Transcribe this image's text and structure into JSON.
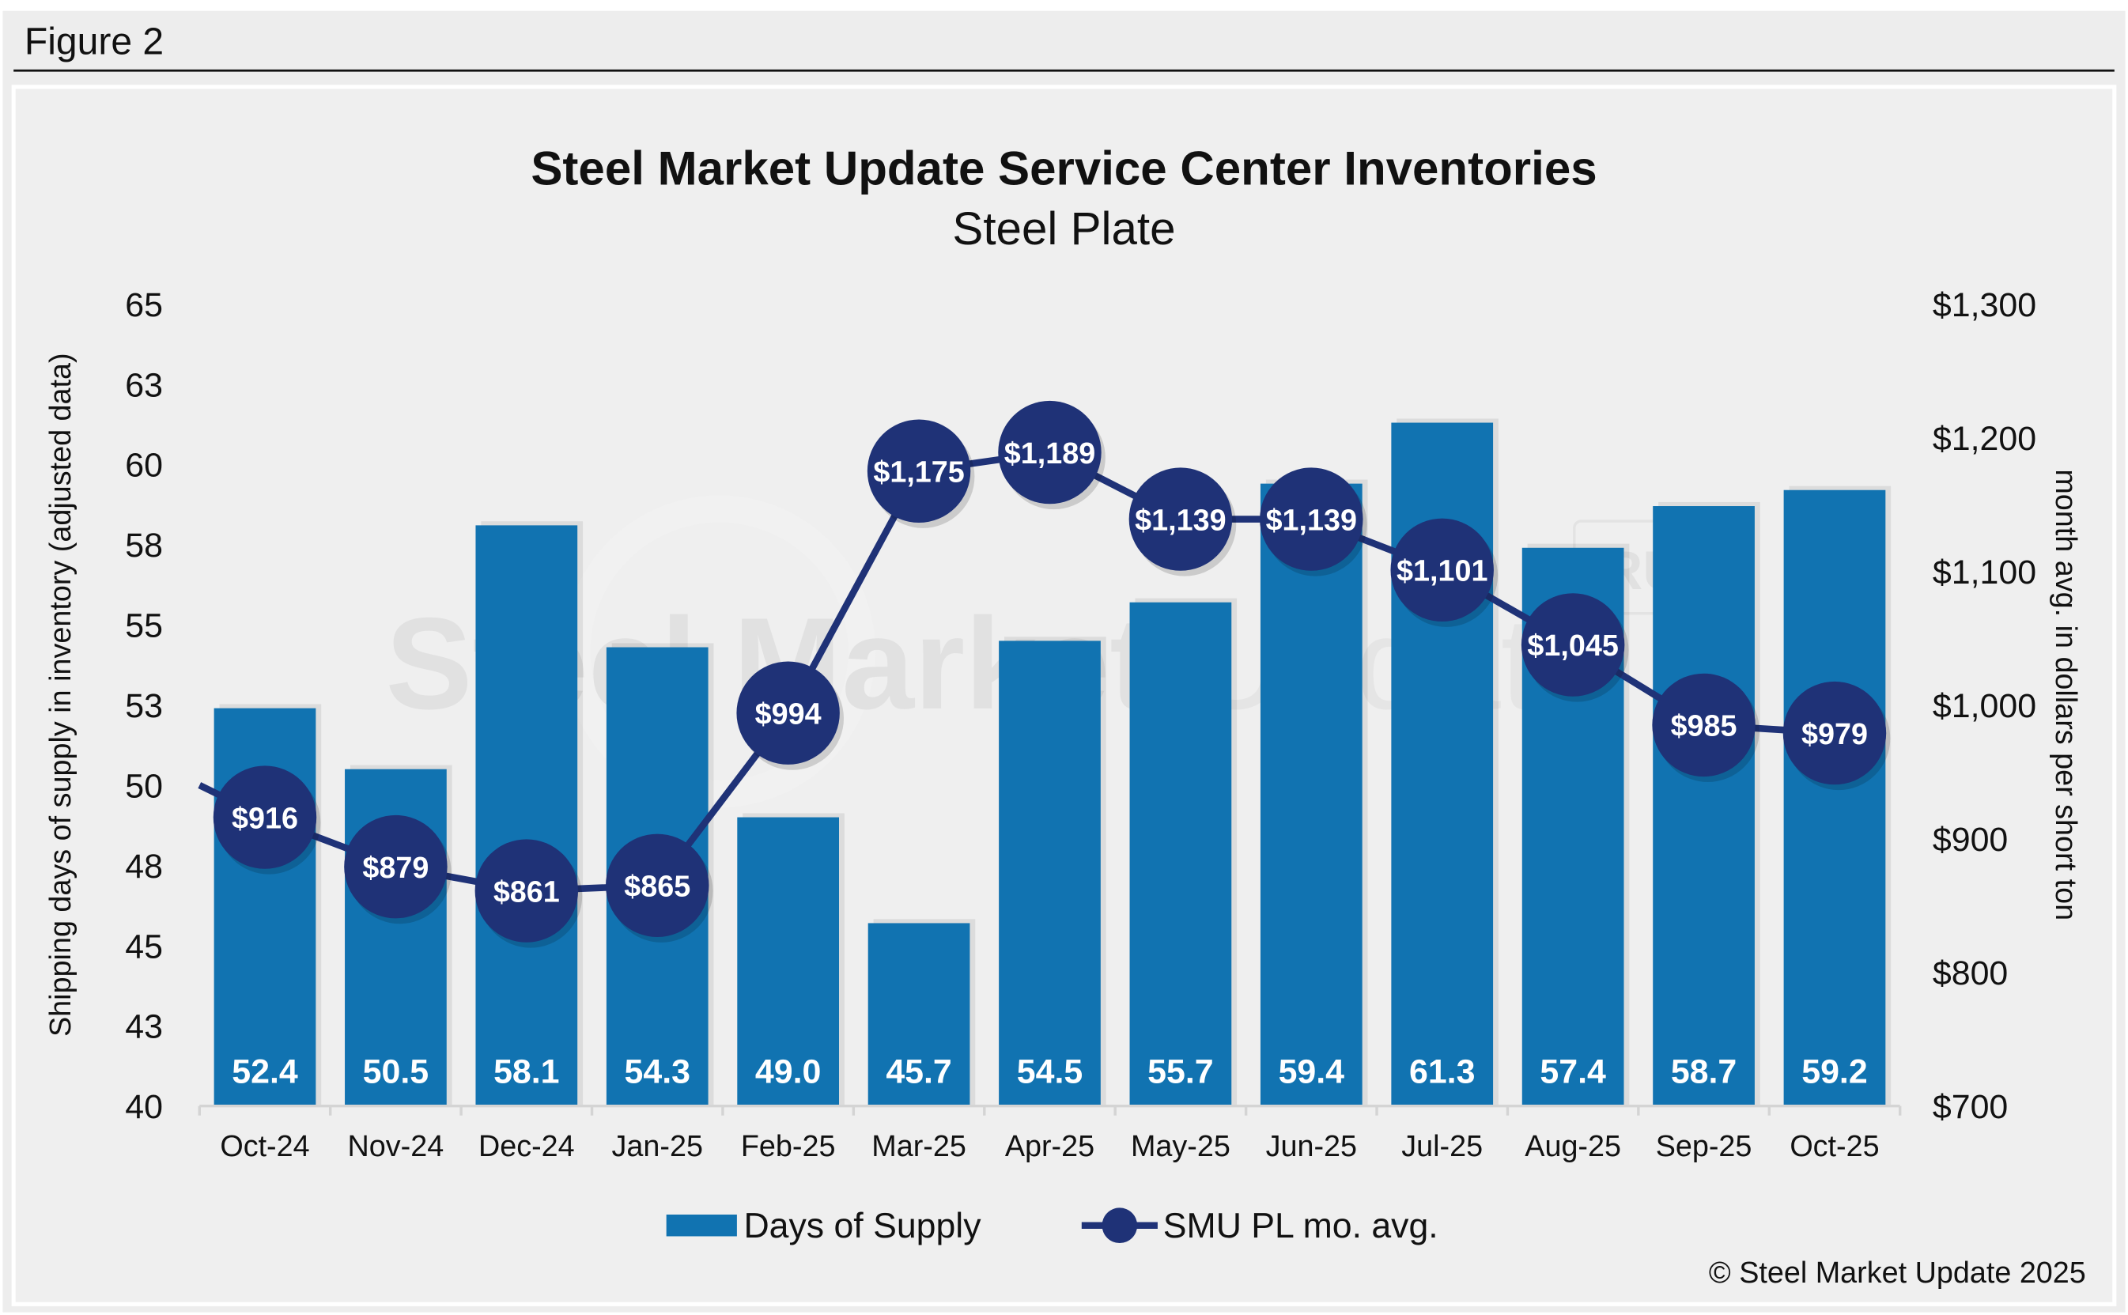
{
  "figure_label": "Figure 2",
  "copyright": "© Steel Market Update 2025",
  "watermark": "Steel Market Update",
  "watermark_badge": "CRU",
  "colors": {
    "bar": "#1173b1",
    "line": "#1f3277",
    "background": "#efefef",
    "text": "#111111"
  },
  "chart_data": {
    "type": "bar+line",
    "title": "Steel Market Update Service Center Inventories",
    "subtitle": "Steel Plate",
    "ylabel": "Shipping days of supply in inventory (adjusted data)",
    "y2label": "month avg. in dollars per short ton",
    "ylim": [
      40,
      65
    ],
    "yticks": [
      "65",
      "63",
      "60",
      "58",
      "55",
      "53",
      "50",
      "48",
      "45",
      "43",
      "40"
    ],
    "y2lim": [
      700,
      1300
    ],
    "y2ticks": [
      "$1,300",
      "$1,200",
      "$1,100",
      "$1,000",
      "$900",
      "$800",
      "$700"
    ],
    "grid": false,
    "legend_position": "bottom",
    "categories": [
      "Oct-24",
      "Nov-24",
      "Dec-24",
      "Jan-25",
      "Feb-25",
      "Mar-25",
      "Apr-25",
      "May-25",
      "Jun-25",
      "Jul-25",
      "Aug-25",
      "Sep-25",
      "Oct-25"
    ],
    "series": [
      {
        "name": "Days of Supply",
        "type": "bar",
        "axis": "left",
        "values": [
          52.4,
          50.5,
          58.1,
          54.3,
          49.0,
          45.7,
          54.5,
          55.7,
          59.4,
          61.3,
          57.4,
          58.7,
          59.2
        ],
        "labels": [
          "52.4",
          "50.5",
          "58.1",
          "54.3",
          "49.0",
          "45.7",
          "54.5",
          "55.7",
          "59.4",
          "61.3",
          "57.4",
          "58.7",
          "59.2"
        ]
      },
      {
        "name": "SMU PL mo. avg.",
        "type": "line",
        "axis": "right",
        "values": [
          916,
          879,
          861,
          865,
          994,
          1175,
          1189,
          1139,
          1139,
          1101,
          1045,
          985,
          979
        ],
        "labels": [
          "$916",
          "$879",
          "$861",
          "$865",
          "$994",
          "$1,175",
          "$1,189",
          "$1,139",
          "$1,139",
          "$1,101",
          "$1,045",
          "$985",
          "$979"
        ],
        "line_enters_from_left_at": 940
      }
    ]
  }
}
